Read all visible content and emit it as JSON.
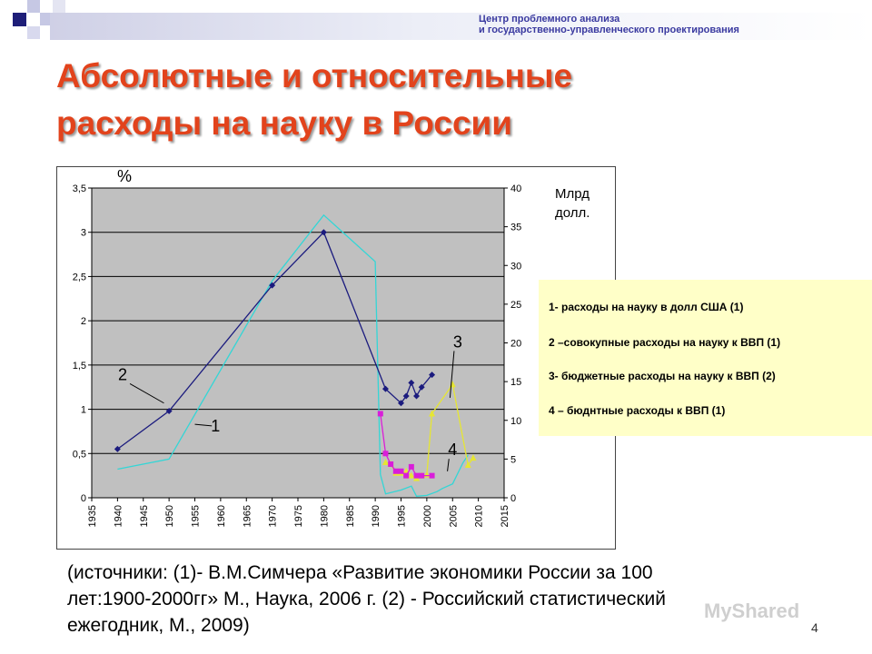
{
  "header": {
    "org_line1": "Центр проблемного анализа",
    "org_line2": "и государственно-управленческого проектирования"
  },
  "title": {
    "line1": "Абсолютные и относительные",
    "line2": "расходы на науку в России"
  },
  "chart_data": {
    "type": "line",
    "left_axis_unit": "%",
    "right_axis_unit_line1": "Млрд",
    "right_axis_unit_line2": "долл.",
    "ylim_left": [
      0,
      3.5
    ],
    "ylim_right": [
      0,
      40
    ],
    "xlim": [
      1935,
      2015
    ],
    "x_ticks": [
      "1935",
      "1940",
      "1945",
      "1950",
      "1955",
      "1960",
      "1965",
      "1970",
      "1975",
      "1980",
      "1985",
      "1990",
      "1995",
      "2000",
      "2005",
      "2010",
      "2015"
    ],
    "y_left_ticks": [
      "0",
      "0,5",
      "1",
      "1,5",
      "2",
      "2,5",
      "3",
      "3,5"
    ],
    "y_right_ticks": [
      "0",
      "5",
      "10",
      "15",
      "20",
      "25",
      "30",
      "35",
      "40"
    ],
    "grid": true,
    "series": [
      {
        "id": "1",
        "color": "#33d6d6",
        "marker": "none",
        "axis": "right",
        "x": [
          1940,
          1950,
          1970,
          1980,
          1990,
          1991,
          1992,
          1995,
          1997,
          1998,
          2000,
          2002,
          2003,
          2005,
          2007,
          2008
        ],
        "y": [
          3.7,
          5.0,
          28.0,
          36.5,
          30.5,
          3.0,
          0.5,
          1.0,
          1.5,
          0.2,
          0.3,
          0.8,
          1.2,
          1.8,
          4.5,
          5.5
        ]
      },
      {
        "id": "2",
        "color": "#1b1b7e",
        "marker": "diamond",
        "axis": "left",
        "x": [
          1940,
          1950,
          1970,
          1980,
          1992,
          1995,
          1996,
          1997,
          1998,
          1999,
          2001
        ],
        "y": [
          0.55,
          0.98,
          2.4,
          3.0,
          1.23,
          1.07,
          1.15,
          1.3,
          1.15,
          1.25,
          1.39
        ]
      },
      {
        "id": "3",
        "color": "#e6e632",
        "marker": "triangle",
        "axis": "left",
        "x": [
          1992,
          1993,
          1994,
          1995,
          1996,
          1997,
          1998,
          1999,
          2000,
          2001,
          2005,
          2008,
          2009
        ],
        "y": [
          0.4,
          0.38,
          0.28,
          0.28,
          0.3,
          0.25,
          0.22,
          0.25,
          0.26,
          0.95,
          1.28,
          0.37,
          0.45
        ]
      },
      {
        "id": "4",
        "color": "#d91ed9",
        "marker": "square",
        "axis": "left",
        "x": [
          1991,
          1992,
          1993,
          1994,
          1995,
          1996,
          1997,
          1998,
          1999,
          2001
        ],
        "y": [
          0.95,
          0.5,
          0.38,
          0.3,
          0.3,
          0.25,
          0.35,
          0.25,
          0.25,
          0.25
        ]
      }
    ],
    "annotations": [
      {
        "text": "2",
        "x": 1941,
        "y_left": 1.33,
        "to_x": 1949,
        "to_y_left": 1.07
      },
      {
        "text": "1",
        "x": 1959,
        "y_left": 0.75,
        "to_x": 1955,
        "to_y_left": 0.83
      },
      {
        "text": "3",
        "x": 2006,
        "y_left": 1.7,
        "to_x": 2004.5,
        "to_y_left": 1.13
      },
      {
        "text": "4",
        "x": 2005,
        "y_left": 0.48,
        "to_x": 2004,
        "to_y_left": 0.3
      }
    ]
  },
  "legend": {
    "item1": "1- расходы на науку в долл США (1)",
    "item2": "2 –совокупные расходы  на науку к ВВП (1)",
    "item3": "3- бюджетные расходы на науку  к ВВП (2)",
    "item4": "4 – бюднтные расходы к ВВП (1)"
  },
  "sources": {
    "line1": "(источники: (1)- В.М.Симчера «Развитие экономики России за 100",
    "line2": "лет:1900-2000гг» М., Наука, 2006 г. (2) - Российский статистический",
    "line3": "ежегодник, М., 2009)"
  },
  "page_number": "4",
  "watermark": "MyShared"
}
